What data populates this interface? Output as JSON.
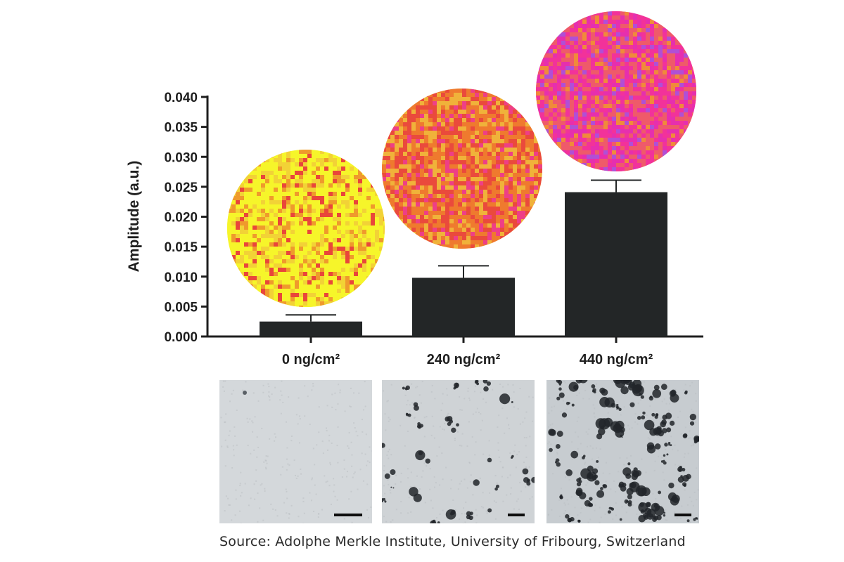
{
  "chart_data": {
    "type": "bar",
    "ylabel": "Amplitude (a.u.)",
    "xlabel": "",
    "ylim": [
      0,
      0.04
    ],
    "yticks": [
      0.0,
      0.005,
      0.01,
      0.015,
      0.02,
      0.025,
      0.03,
      0.035,
      0.04
    ],
    "ytick_labels": [
      "0.000",
      "0.005",
      "0.010",
      "0.015",
      "0.020",
      "0.025",
      "0.030",
      "0.035",
      "0.040"
    ],
    "categories": [
      "0 ng/cm²",
      "240 ng/cm²",
      "440 ng/cm²"
    ],
    "values": [
      0.0025,
      0.0098,
      0.0241
    ],
    "errors": [
      0.0011,
      0.002,
      0.002
    ],
    "bar_color": "#232627",
    "grid": false,
    "legend": "none"
  },
  "inset_maps": [
    {
      "category": "0 ng/cm²",
      "palette": [
        "#f6f52a",
        "#f2d236",
        "#ef9a2c",
        "#e9463a"
      ]
    },
    {
      "category": "240 ng/cm²",
      "palette": [
        "#f0b23a",
        "#ef7a2e",
        "#ea4a3c",
        "#ee3f86"
      ]
    },
    {
      "category": "440 ng/cm²",
      "palette": [
        "#ef5a6a",
        "#f2329a",
        "#e62fae",
        "#b04fd6",
        "#f08a3a"
      ]
    }
  ],
  "tem_images": [
    {
      "category": "0 ng/cm²",
      "background": "#d4d8db",
      "particle_density": "none"
    },
    {
      "category": "240 ng/cm²",
      "background": "#cfd3d6",
      "particle_density": "sparse"
    },
    {
      "category": "440 ng/cm²",
      "background": "#c7ccd0",
      "particle_density": "dense"
    }
  ],
  "source": "Source: Adolphe Merkle Institute, University of Fribourg, Switzerland"
}
